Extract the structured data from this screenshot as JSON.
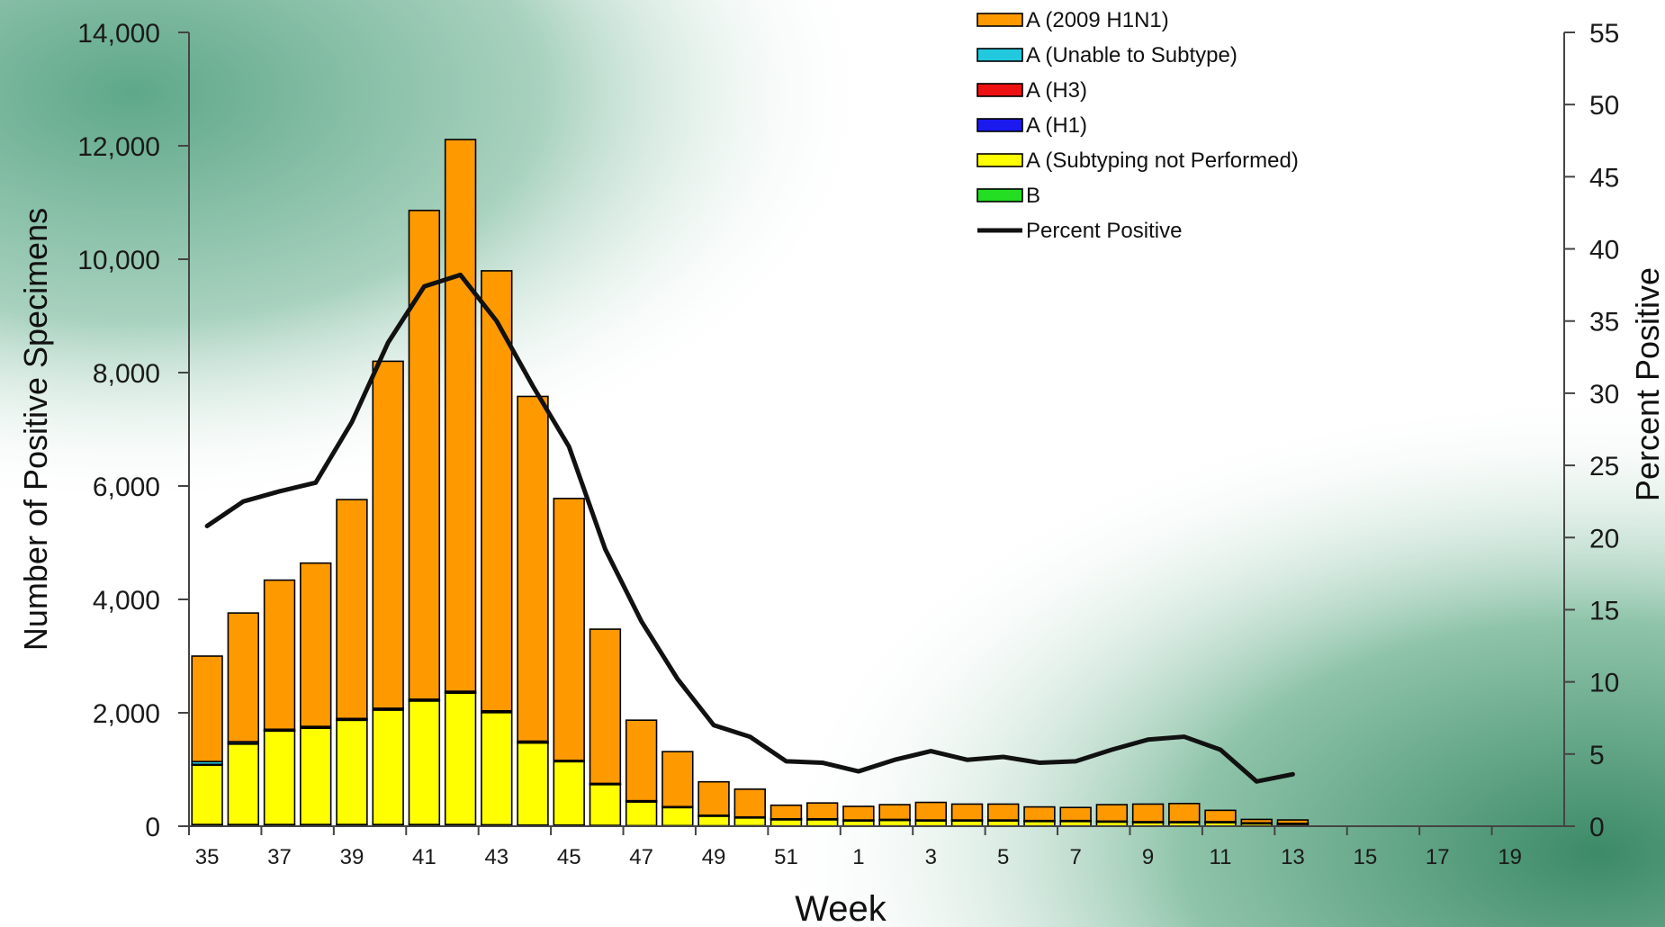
{
  "chart_data": {
    "type": "bar",
    "stacked": true,
    "title": "",
    "xlabel": "Week",
    "ylabel": "Number of Positive Specimens",
    "y2label": "Percent Positive",
    "ylim": [
      0,
      14000
    ],
    "y2lim": [
      0,
      55
    ],
    "yticks": [
      "0",
      "2,000",
      "4,000",
      "6,000",
      "8,000",
      "10,000",
      "12,000",
      "14,000"
    ],
    "y2ticks": [
      "0",
      "5",
      "10",
      "15",
      "20",
      "25",
      "30",
      "35",
      "40",
      "45",
      "50",
      "55"
    ],
    "categories": [
      "35",
      "36",
      "37",
      "38",
      "39",
      "40",
      "41",
      "42",
      "43",
      "44",
      "45",
      "46",
      "47",
      "48",
      "49",
      "50",
      "51",
      "52",
      "1",
      "2",
      "3",
      "4",
      "5",
      "6",
      "7",
      "8",
      "9",
      "10",
      "11",
      "12",
      "13",
      "14",
      "15",
      "16",
      "17",
      "18",
      "19",
      "20"
    ],
    "xtick_labels": [
      "35",
      "",
      "37",
      "",
      "39",
      "",
      "41",
      "",
      "43",
      "",
      "45",
      "",
      "47",
      "",
      "49",
      "",
      "51",
      "",
      "1",
      "",
      "3",
      "",
      "5",
      "",
      "7",
      "",
      "9",
      "",
      "11",
      "",
      "13",
      "",
      "15",
      "",
      "17",
      "",
      "19",
      ""
    ],
    "legend_position": "top-center",
    "grid": false,
    "series": [
      {
        "name": "B",
        "color": "#22dd22",
        "values": [
          30,
          30,
          30,
          30,
          30,
          30,
          30,
          30,
          25,
          20,
          20,
          15,
          10,
          10,
          8,
          8,
          5,
          5,
          5,
          5,
          5,
          5,
          5,
          5,
          5,
          5,
          5,
          5,
          5,
          5,
          5,
          null,
          null,
          null,
          null,
          null,
          null,
          null
        ]
      },
      {
        "name": "A (Subtyping  not Performed)",
        "color": "#ffff00",
        "values": [
          1050,
          1420,
          1650,
          1700,
          1840,
          2020,
          2180,
          2320,
          1980,
          1450,
          1120,
          720,
          420,
          320,
          170,
          140,
          110,
          110,
          90,
          100,
          90,
          90,
          90,
          80,
          80,
          70,
          60,
          60,
          60,
          40,
          30,
          null,
          null,
          null,
          null,
          null,
          null,
          null
        ]
      },
      {
        "name": "A (H1)",
        "color": "#1a1aee",
        "values": [
          5,
          5,
          5,
          5,
          5,
          5,
          5,
          5,
          5,
          5,
          5,
          5,
          5,
          5,
          5,
          5,
          5,
          5,
          5,
          5,
          5,
          5,
          5,
          5,
          5,
          5,
          5,
          5,
          5,
          5,
          5,
          null,
          null,
          null,
          null,
          null,
          null,
          null
        ]
      },
      {
        "name": "A (H3)",
        "color": "#ee1111",
        "values": [
          5,
          5,
          5,
          5,
          5,
          5,
          5,
          5,
          5,
          5,
          5,
          5,
          5,
          5,
          5,
          5,
          5,
          5,
          5,
          5,
          5,
          5,
          5,
          5,
          5,
          5,
          5,
          5,
          5,
          5,
          5,
          null,
          null,
          null,
          null,
          null,
          null,
          null
        ]
      },
      {
        "name": "A (Unable  to Subtype)",
        "color": "#22c8dd",
        "values": [
          50,
          30,
          20,
          20,
          20,
          20,
          20,
          20,
          20,
          20,
          10,
          10,
          10,
          5,
          5,
          5,
          5,
          5,
          5,
          5,
          5,
          5,
          5,
          5,
          5,
          5,
          5,
          5,
          5,
          5,
          5,
          null,
          null,
          null,
          null,
          null,
          null,
          null
        ]
      },
      {
        "name": "A (2009  H1N1)",
        "color": "#ff9900",
        "values": [
          1860,
          2270,
          2630,
          2880,
          3860,
          6120,
          8620,
          9730,
          7760,
          6080,
          4620,
          2720,
          1420,
          970,
          590,
          490,
          240,
          280,
          240,
          260,
          310,
          280,
          280,
          240,
          230,
          290,
          310,
          320,
          200,
          60,
          60,
          null,
          null,
          null,
          null,
          null,
          null,
          null
        ]
      }
    ],
    "line_series": {
      "name": "Percent Positive",
      "color": "#111111",
      "axis": "right",
      "values": [
        20.8,
        22.5,
        23.2,
        23.8,
        28,
        33.5,
        37.4,
        38.2,
        35,
        30.5,
        26.3,
        19.2,
        14.2,
        10.2,
        7,
        6.2,
        4.5,
        4.4,
        3.8,
        4.6,
        5.2,
        4.6,
        4.8,
        4.4,
        4.5,
        5.3,
        6,
        6.2,
        5.3,
        3.1,
        3.6,
        null,
        null,
        null,
        null,
        null,
        null,
        null
      ]
    }
  }
}
